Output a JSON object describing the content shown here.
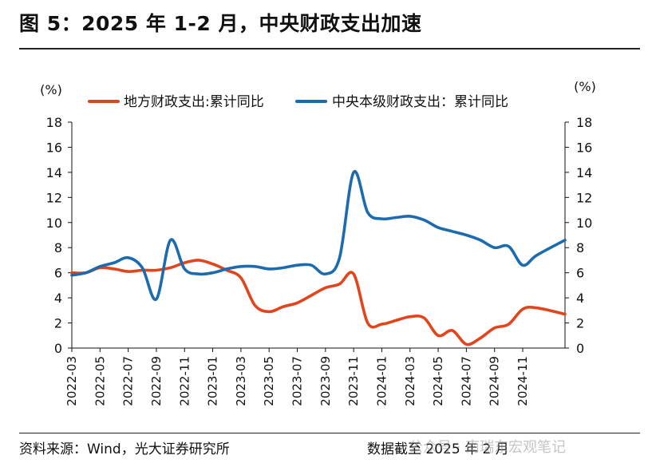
{
  "header": {
    "title": "图 5：2025 年 1-2 月，中央财政支出加速"
  },
  "footer": {
    "source": "资料来源：Wind，光大证券研究所",
    "date_note": "数据截至 2025 年 2 月",
    "watermark": "公众号 · 南瑞东宏观笔记"
  },
  "chart_data": {
    "type": "line",
    "y_unit_left": "(%)",
    "y_unit_right": "(%)",
    "ylim": [
      0,
      18
    ],
    "yticks": [
      0,
      2,
      4,
      6,
      8,
      10,
      12,
      14,
      16,
      18
    ],
    "xlim": [
      "2022-03",
      "2025-02"
    ],
    "xticks": [
      "2022-03",
      "2022-05",
      "2022-07",
      "2022-09",
      "2022-11",
      "2023-01",
      "2023-03",
      "2023-05",
      "2023-07",
      "2023-09",
      "2023-11",
      "2024-01",
      "2024-03",
      "2024-05",
      "2024-07",
      "2024-09",
      "2024-11"
    ],
    "legend_position": "top",
    "series": [
      {
        "name": "地方财政支出:累计同比",
        "color": "#E2451B",
        "points": [
          [
            "2022-03",
            6.0
          ],
          [
            "2022-04",
            6.0
          ],
          [
            "2022-05",
            6.4
          ],
          [
            "2022-06",
            6.3
          ],
          [
            "2022-07",
            6.1
          ],
          [
            "2022-08",
            6.2
          ],
          [
            "2022-09",
            6.2
          ],
          [
            "2022-10",
            6.4
          ],
          [
            "2022-11",
            6.8
          ],
          [
            "2022-12",
            7.0
          ],
          [
            "2023-01",
            6.7
          ],
          [
            "2023-02",
            6.2
          ],
          [
            "2023-03",
            5.6
          ],
          [
            "2023-04",
            3.4
          ],
          [
            "2023-05",
            2.9
          ],
          [
            "2023-06",
            3.3
          ],
          [
            "2023-07",
            3.6
          ],
          [
            "2023-08",
            4.2
          ],
          [
            "2023-09",
            4.8
          ],
          [
            "2023-10",
            5.1
          ],
          [
            "2023-11",
            5.9
          ],
          [
            "2023-12",
            2.0
          ],
          [
            "2024-01",
            1.9
          ],
          [
            "2024-02",
            2.2
          ],
          [
            "2024-03",
            2.5
          ],
          [
            "2024-04",
            2.4
          ],
          [
            "2024-05",
            1.0
          ],
          [
            "2024-06",
            1.4
          ],
          [
            "2024-07",
            0.3
          ],
          [
            "2024-08",
            0.8
          ],
          [
            "2024-09",
            1.6
          ],
          [
            "2024-10",
            1.9
          ],
          [
            "2024-11",
            3.1
          ],
          [
            "2024-12",
            3.2
          ],
          [
            "2025-02",
            2.7
          ]
        ]
      },
      {
        "name": "中央本级财政支出：累计同比",
        "color": "#1C6BAE",
        "points": [
          [
            "2022-03",
            5.8
          ],
          [
            "2022-04",
            6.0
          ],
          [
            "2022-05",
            6.5
          ],
          [
            "2022-06",
            6.8
          ],
          [
            "2022-07",
            7.2
          ],
          [
            "2022-08",
            6.4
          ],
          [
            "2022-09",
            3.9
          ],
          [
            "2022-10",
            8.6
          ],
          [
            "2022-11",
            6.3
          ],
          [
            "2022-12",
            5.9
          ],
          [
            "2023-01",
            6.0
          ],
          [
            "2023-02",
            6.3
          ],
          [
            "2023-03",
            6.5
          ],
          [
            "2023-04",
            6.5
          ],
          [
            "2023-05",
            6.3
          ],
          [
            "2023-06",
            6.4
          ],
          [
            "2023-07",
            6.6
          ],
          [
            "2023-08",
            6.6
          ],
          [
            "2023-09",
            5.9
          ],
          [
            "2023-10",
            7.2
          ],
          [
            "2023-11",
            14.0
          ],
          [
            "2023-12",
            10.8
          ],
          [
            "2024-01",
            10.3
          ],
          [
            "2024-02",
            10.4
          ],
          [
            "2024-03",
            10.5
          ],
          [
            "2024-04",
            10.2
          ],
          [
            "2024-05",
            9.6
          ],
          [
            "2024-06",
            9.3
          ],
          [
            "2024-07",
            9.0
          ],
          [
            "2024-08",
            8.6
          ],
          [
            "2024-09",
            8.0
          ],
          [
            "2024-10",
            8.1
          ],
          [
            "2024-11",
            6.6
          ],
          [
            "2024-12",
            7.4
          ],
          [
            "2025-02",
            8.6
          ]
        ]
      }
    ]
  }
}
